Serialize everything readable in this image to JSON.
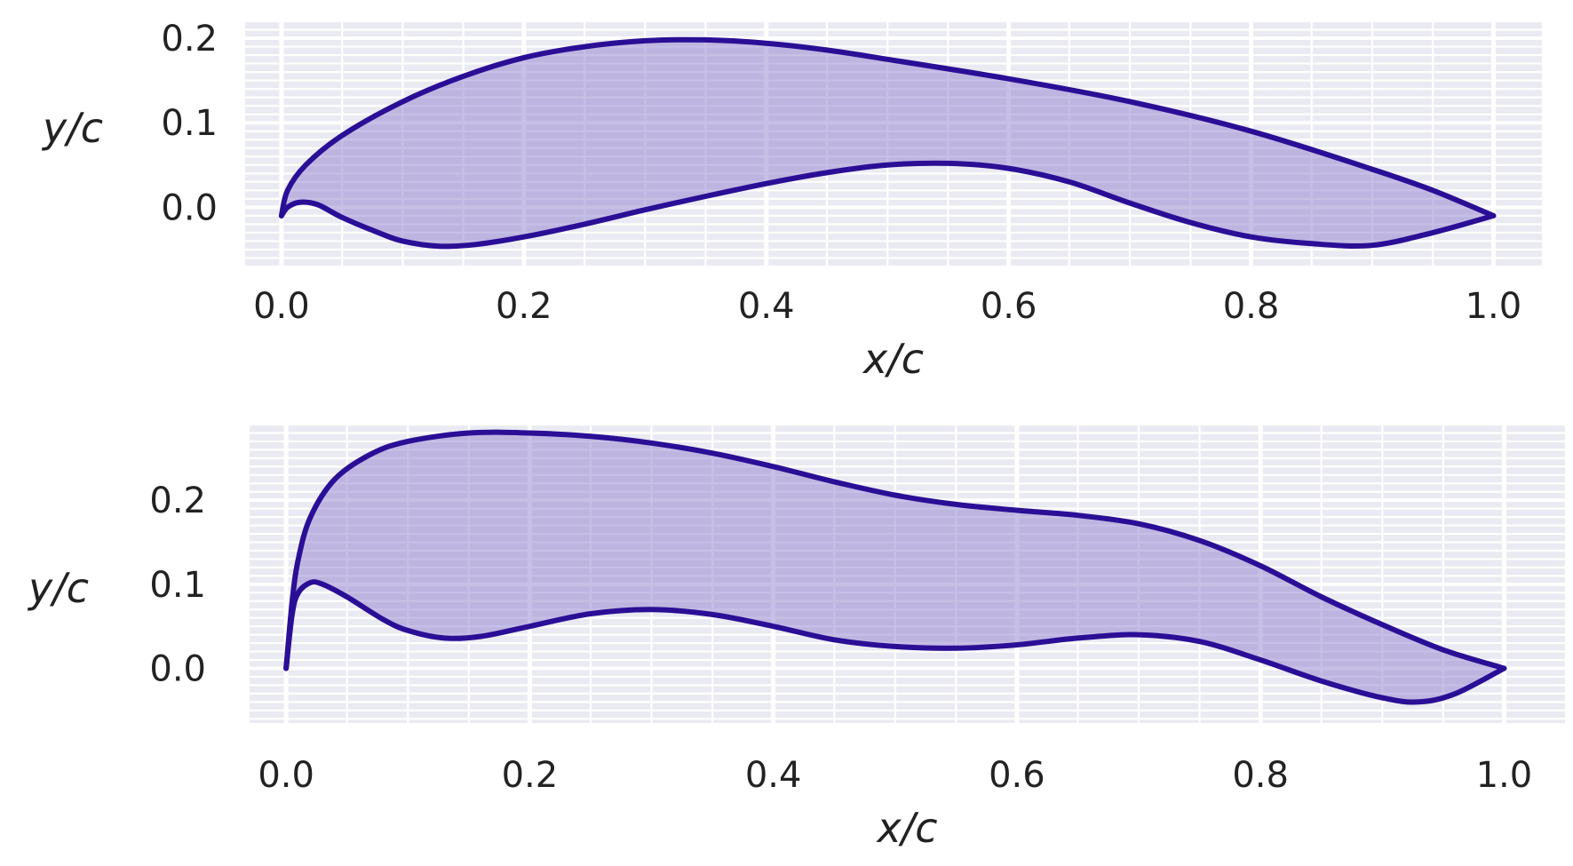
{
  "colors": {
    "line": "#2a0f96",
    "fill": "#8f7fcd",
    "plot_background": "#eaeaf2",
    "grid": "#ffffff"
  },
  "chart_data": [
    {
      "type": "area",
      "xlabel": "x/c",
      "ylabel": "y/c",
      "xlim": [
        -0.03,
        1.04
      ],
      "ylim": [
        -0.07,
        0.22
      ],
      "xticks": [
        0.0,
        0.2,
        0.4,
        0.6,
        0.8,
        1.0
      ],
      "xtick_labels": [
        "0.0",
        "0.2",
        "0.4",
        "0.6",
        "0.8",
        "1.0"
      ],
      "yticks": [
        0.0,
        0.1,
        0.2
      ],
      "ytick_labels": [
        "0.0",
        "0.1",
        "0.2"
      ],
      "grid": true,
      "series": [
        {
          "role": "upper",
          "x": [
            0.0,
            0.005,
            0.02,
            0.05,
            0.1,
            0.15,
            0.2,
            0.25,
            0.3,
            0.35,
            0.4,
            0.45,
            0.5,
            0.6,
            0.7,
            0.8,
            0.9,
            0.95,
            1.0
          ],
          "y": [
            -0.01,
            0.02,
            0.05,
            0.085,
            0.125,
            0.155,
            0.177,
            0.19,
            0.197,
            0.198,
            0.194,
            0.186,
            0.175,
            0.152,
            0.125,
            0.09,
            0.045,
            0.02,
            -0.01
          ]
        },
        {
          "role": "lower",
          "x": [
            0.0,
            0.005,
            0.015,
            0.03,
            0.05,
            0.08,
            0.1,
            0.13,
            0.16,
            0.2,
            0.25,
            0.3,
            0.35,
            0.4,
            0.45,
            0.5,
            0.55,
            0.6,
            0.65,
            0.7,
            0.75,
            0.8,
            0.85,
            0.9,
            0.95,
            1.0
          ],
          "y": [
            -0.01,
            0.0,
            0.006,
            0.003,
            -0.012,
            -0.03,
            -0.04,
            -0.046,
            -0.044,
            -0.035,
            -0.02,
            -0.003,
            0.013,
            0.028,
            0.041,
            0.05,
            0.052,
            0.046,
            0.03,
            0.005,
            -0.018,
            -0.035,
            -0.043,
            -0.045,
            -0.03,
            -0.01
          ]
        }
      ]
    },
    {
      "type": "area",
      "xlabel": "x/c",
      "ylabel": "y/c",
      "xlim": [
        -0.03,
        1.05
      ],
      "ylim": [
        -0.065,
        0.29
      ],
      "xticks": [
        0.0,
        0.2,
        0.4,
        0.6,
        0.8,
        1.0
      ],
      "xtick_labels": [
        "0.0",
        "0.2",
        "0.4",
        "0.6",
        "0.8",
        "1.0"
      ],
      "yticks": [
        0.0,
        0.1,
        0.2
      ],
      "ytick_labels": [
        "0.0",
        "0.1",
        "0.2"
      ],
      "grid": true,
      "series": [
        {
          "role": "upper",
          "x": [
            0.0,
            0.005,
            0.01,
            0.02,
            0.04,
            0.07,
            0.1,
            0.15,
            0.2,
            0.25,
            0.3,
            0.35,
            0.4,
            0.45,
            0.5,
            0.55,
            0.6,
            0.65,
            0.7,
            0.75,
            0.8,
            0.85,
            0.9,
            0.95,
            1.0
          ],
          "y": [
            0.0,
            0.08,
            0.13,
            0.18,
            0.225,
            0.255,
            0.27,
            0.28,
            0.28,
            0.276,
            0.268,
            0.256,
            0.24,
            0.222,
            0.206,
            0.195,
            0.188,
            0.182,
            0.172,
            0.152,
            0.122,
            0.085,
            0.052,
            0.022,
            0.0
          ]
        },
        {
          "role": "lower",
          "x": [
            0.0,
            0.005,
            0.01,
            0.02,
            0.03,
            0.05,
            0.08,
            0.1,
            0.13,
            0.16,
            0.2,
            0.25,
            0.3,
            0.35,
            0.4,
            0.45,
            0.5,
            0.55,
            0.6,
            0.65,
            0.7,
            0.75,
            0.8,
            0.85,
            0.9,
            0.93,
            0.96,
            1.0
          ],
          "y": [
            0.0,
            0.065,
            0.09,
            0.102,
            0.1,
            0.085,
            0.058,
            0.045,
            0.036,
            0.038,
            0.05,
            0.065,
            0.07,
            0.064,
            0.05,
            0.034,
            0.026,
            0.024,
            0.028,
            0.036,
            0.04,
            0.032,
            0.01,
            -0.015,
            -0.035,
            -0.04,
            -0.03,
            0.0
          ]
        }
      ]
    }
  ]
}
